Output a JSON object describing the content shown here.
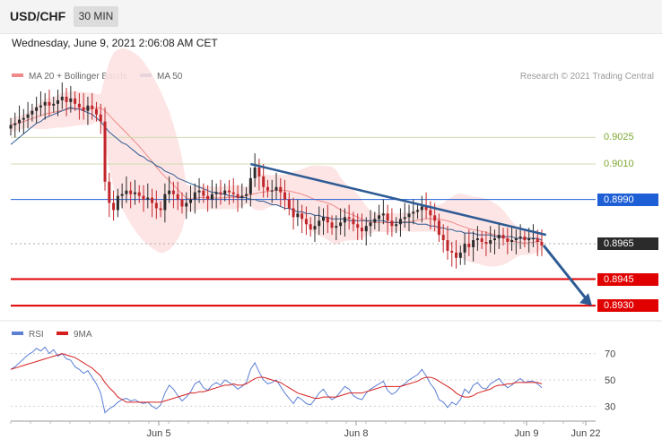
{
  "header": {
    "pair": "USD/CHF",
    "timeframe": "30 MIN"
  },
  "datetime": "Wednesday, June 9, 2021 2:06:08 AM CET",
  "legend": {
    "ma20_label": "MA 20 + Bollinger Bands",
    "ma50_label": "MA 50",
    "rsi_label": "RSI",
    "rsi_ma_label": "9MA",
    "credit": "Research © 2021 Trading Central"
  },
  "colors": {
    "ma20": "#f08a8a",
    "ma50": "#2e5b94",
    "band_fill": "#fde2e2",
    "resistance_green": "#7ea832",
    "level_blue": "#1f5fd6",
    "level_red": "#e00000",
    "current_dark": "#2b2b2b",
    "rsi": "#5b7fd4",
    "rsi_ma": "#d62020",
    "candle_up": "#2b2b2b",
    "candle_down": "#c0262a"
  },
  "chart_data": [
    {
      "type": "candlestick",
      "ylim": [
        0.8922,
        0.9052
      ],
      "x_ticks": [
        "Jun 5",
        "Jun 8",
        "Jun 9",
        "Jun 22"
      ],
      "levels": [
        {
          "value": 0.9025,
          "label": "0.9025",
          "style": "resistance"
        },
        {
          "value": 0.901,
          "label": "0.9010",
          "style": "resistance"
        },
        {
          "value": 0.899,
          "label": "0.8990",
          "style": "pivot"
        },
        {
          "value": 0.8965,
          "label": "0.8965",
          "style": "current"
        },
        {
          "value": 0.8945,
          "label": "0.8945",
          "style": "support"
        },
        {
          "value": 0.893,
          "label": "0.8930",
          "style": "support"
        }
      ],
      "closes": [
        0.9032,
        0.9033,
        0.9035,
        0.9036,
        0.9038,
        0.904,
        0.9042,
        0.9043,
        0.9045,
        0.9043,
        0.9044,
        0.9046,
        0.9048,
        0.9045,
        0.9047,
        0.9044,
        0.9042,
        0.904,
        0.9043,
        0.9041,
        0.9038,
        0.9034,
        0.9,
        0.8988,
        0.8984,
        0.8992,
        0.8993,
        0.8995,
        0.8993,
        0.8994,
        0.8992,
        0.899,
        0.8991,
        0.8988,
        0.8985,
        0.8984,
        0.8993,
        0.8995,
        0.8993,
        0.899,
        0.8986,
        0.8988,
        0.899,
        0.8994,
        0.8995,
        0.8992,
        0.899,
        0.8993,
        0.8994,
        0.8993,
        0.8995,
        0.8994,
        0.8993,
        0.8991,
        0.8992,
        0.8993,
        0.9002,
        0.9008,
        0.9003,
        0.8997,
        0.8995,
        0.8995,
        0.8997,
        0.8994,
        0.899,
        0.8985,
        0.898,
        0.8982,
        0.8979,
        0.8976,
        0.8973,
        0.8975,
        0.8978,
        0.898,
        0.8977,
        0.8974,
        0.8975,
        0.8977,
        0.898,
        0.8979,
        0.8976,
        0.8974,
        0.8972,
        0.8975,
        0.8977,
        0.8979,
        0.8981,
        0.8982,
        0.8978,
        0.8975,
        0.8976,
        0.8979,
        0.898,
        0.8982,
        0.8983,
        0.8984,
        0.8986,
        0.8984,
        0.8981,
        0.8978,
        0.897,
        0.8967,
        0.8961,
        0.896,
        0.8957,
        0.896,
        0.8965,
        0.8963,
        0.8967,
        0.8968,
        0.8966,
        0.8965,
        0.8967,
        0.8968,
        0.897,
        0.8968,
        0.8966,
        0.8967,
        0.8968,
        0.8969,
        0.8967,
        0.8968,
        0.8968,
        0.8966,
        0.8964
      ],
      "ma50": [
        0.9021,
        0.9023,
        0.9025,
        0.9027,
        0.9029,
        0.9031,
        0.9033,
        0.9034,
        0.9036,
        0.9037,
        0.9038,
        0.9039,
        0.904,
        0.9041,
        0.9042,
        0.9041,
        0.9041,
        0.904,
        0.9039,
        0.9038,
        0.9036,
        0.9034,
        0.9031,
        0.9028,
        0.9026,
        0.9024,
        0.9022,
        0.9021,
        0.9019,
        0.9017,
        0.9015,
        0.9014,
        0.9012,
        0.9011,
        0.9009,
        0.9008,
        0.9006,
        0.9005,
        0.9004,
        0.9002,
        0.9001,
        0.9,
        0.8999,
        0.8998,
        0.8997,
        0.8996,
        0.8995,
        0.8994,
        0.8994,
        0.8993,
        0.8993,
        0.8992,
        0.8992,
        0.8991,
        0.8991,
        0.8991,
        0.899,
        0.899,
        0.8989,
        0.8989,
        0.8988,
        0.8987,
        0.8987,
        0.8986,
        0.8985,
        0.8985,
        0.8984,
        0.8983,
        0.8983,
        0.8982,
        0.8982,
        0.8981,
        0.8981,
        0.898,
        0.898,
        0.8979,
        0.8979,
        0.8979,
        0.8979,
        0.8978,
        0.8978,
        0.8978,
        0.8978,
        0.8978,
        0.8978,
        0.8978,
        0.8978,
        0.8978,
        0.8977,
        0.8977,
        0.8977,
        0.8977,
        0.8977,
        0.8977,
        0.8977,
        0.8976,
        0.8976,
        0.8976,
        0.8975,
        0.8975,
        0.8974,
        0.8974,
        0.8973,
        0.8973,
        0.8972,
        0.8972,
        0.8971,
        0.8971,
        0.8971,
        0.897,
        0.897,
        0.897,
        0.897,
        0.8969,
        0.8969,
        0.8969,
        0.8969,
        0.8969,
        0.8968,
        0.8968,
        0.8968,
        0.8968,
        0.8968,
        0.8968,
        0.8967
      ],
      "trendline": {
        "from_index": 56,
        "from_value": 0.901,
        "to_index": 125,
        "to_value": 0.897
      },
      "projection": {
        "to_value": 0.893
      }
    },
    {
      "type": "line",
      "title": "RSI",
      "ylim": [
        20,
        80
      ],
      "y_ticks": [
        70,
        50,
        30
      ],
      "series": [
        {
          "name": "RSI",
          "values": [
            58,
            60,
            63,
            66,
            69,
            71,
            74,
            72,
            75,
            70,
            73,
            68,
            70,
            66,
            65,
            60,
            58,
            55,
            57,
            52,
            47,
            40,
            25,
            28,
            30,
            33,
            35,
            36,
            34,
            35,
            33,
            32,
            33,
            30,
            28,
            31,
            40,
            46,
            43,
            38,
            34,
            37,
            41,
            47,
            49,
            44,
            42,
            46,
            48,
            46,
            50,
            48,
            46,
            43,
            45,
            48,
            58,
            63,
            56,
            50,
            47,
            48,
            50,
            45,
            40,
            36,
            32,
            37,
            35,
            32,
            31,
            35,
            40,
            43,
            38,
            35,
            37,
            41,
            45,
            43,
            38,
            36,
            35,
            40,
            43,
            45,
            47,
            49,
            42,
            39,
            41,
            45,
            47,
            50,
            52,
            54,
            58,
            53,
            47,
            43,
            35,
            33,
            29,
            33,
            31,
            35,
            43,
            40,
            46,
            48,
            44,
            43,
            47,
            49,
            51,
            47,
            44,
            46,
            49,
            51,
            48,
            49,
            49,
            47,
            44
          ]
        },
        {
          "name": "9MA",
          "values": [
            58,
            59,
            60,
            61,
            62,
            63,
            64,
            65,
            66,
            67,
            68,
            69,
            70,
            69,
            68,
            67,
            65,
            63,
            61,
            59,
            56,
            53,
            48,
            44,
            41,
            37,
            35,
            33,
            33,
            33,
            33,
            33,
            33,
            33,
            33,
            33,
            34,
            35,
            36,
            37,
            38,
            39,
            40,
            40,
            41,
            41,
            42,
            43,
            44,
            45,
            46,
            46,
            47,
            46,
            46,
            47,
            49,
            51,
            52,
            52,
            51,
            50,
            49,
            48,
            46,
            44,
            42,
            40,
            39,
            38,
            37,
            36,
            36,
            37,
            37,
            37,
            37,
            38,
            39,
            40,
            40,
            40,
            40,
            41,
            42,
            43,
            44,
            45,
            45,
            45,
            45,
            45,
            46,
            47,
            48,
            49,
            51,
            52,
            52,
            51,
            49,
            47,
            45,
            43,
            40,
            38,
            37,
            37,
            38,
            40,
            41,
            42,
            43,
            45,
            46,
            46,
            47,
            47,
            48,
            48,
            48,
            48,
            48,
            48,
            47
          ]
        }
      ]
    }
  ]
}
